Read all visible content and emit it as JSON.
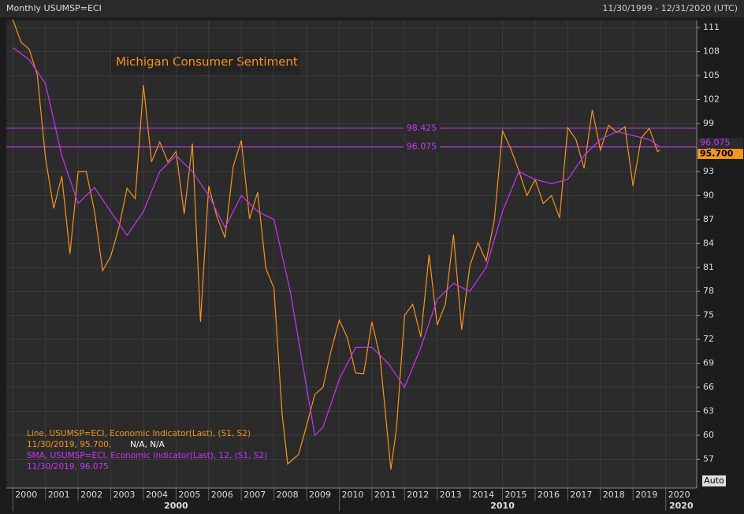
{
  "header": {
    "title": "Monthly USUMSP=ECI",
    "range": "11/30/1999 - 12/31/2020 (UTC)",
    "button": "Auto"
  },
  "chart_data": {
    "type": "line",
    "title": "Michigan Consumer Sentiment",
    "xlim": [
      1999.8,
      2020.95
    ],
    "ylim": [
      53.4,
      111.9
    ],
    "xticks": [
      2000,
      2001,
      2002,
      2003,
      2004,
      2005,
      2006,
      2007,
      2008,
      2009,
      2010,
      2011,
      2012,
      2013,
      2014,
      2015,
      2016,
      2017,
      2018,
      2019,
      2020
    ],
    "decade_labels": [
      2000,
      2010,
      2020
    ],
    "yticks": [
      57,
      60,
      63,
      66,
      69,
      72,
      75,
      78,
      81,
      84,
      87,
      90,
      93,
      96,
      99,
      102,
      105,
      108,
      111
    ],
    "grid": true,
    "reference_lines": [
      98.425,
      96.075
    ],
    "legend": [
      "Line, USUMSP=ECI, Economic Indicator(Last), (S1, S2)",
      "11/30/2019, 95.700,",
      "N/A, N/A",
      "SMA, USUMSP=ECI, Economic Indicator(Last),  12, (S1, S2)",
      "11/30/2019, 96.075"
    ],
    "series": [
      {
        "name": "USUMSP=ECI",
        "color": "#f7941d",
        "last_label": {
          "value": 95.7,
          "label": "95.700"
        },
        "x": [
          2000.0,
          2000.25,
          2000.5,
          2000.75,
          2001.0,
          2001.25,
          2001.5,
          2001.75,
          2002.0,
          2002.25,
          2002.5,
          2002.75,
          2003.0,
          2003.25,
          2003.5,
          2003.75,
          2004.0,
          2004.25,
          2004.5,
          2004.75,
          2005.0,
          2005.25,
          2005.5,
          2005.75,
          2006.0,
          2006.25,
          2006.5,
          2006.75,
          2007.0,
          2007.25,
          2007.5,
          2007.75,
          2008.0,
          2008.25,
          2008.42,
          2008.75,
          2009.0,
          2009.25,
          2009.5,
          2009.75,
          2010.0,
          2010.25,
          2010.5,
          2010.75,
          2011.0,
          2011.25,
          2011.58,
          2011.75,
          2012.0,
          2012.25,
          2012.5,
          2012.75,
          2013.0,
          2013.25,
          2013.5,
          2013.75,
          2014.0,
          2014.25,
          2014.5,
          2014.75,
          2015.0,
          2015.25,
          2015.5,
          2015.75,
          2016.0,
          2016.25,
          2016.5,
          2016.75,
          2017.0,
          2017.25,
          2017.5,
          2017.75,
          2018.0,
          2018.25,
          2018.5,
          2018.75,
          2019.0,
          2019.25,
          2019.5,
          2019.75,
          2019.83
        ],
        "values": [
          112,
          109.2,
          108.3,
          105.1,
          94.7,
          88.4,
          92.4,
          82.7,
          93,
          93,
          88.1,
          80.6,
          82.4,
          86,
          90.9,
          89.6,
          103.8,
          94.2,
          96.7,
          94.2,
          95.5,
          87.7,
          96.5,
          74.2,
          91.2,
          87.4,
          84.7,
          93.6,
          96.9,
          87.1,
          90.4,
          80.9,
          78.4,
          62.6,
          56.4,
          57.6,
          61.2,
          65.1,
          66,
          70.6,
          74.4,
          72.2,
          67.8,
          67.7,
          74.2,
          69.8,
          55.7,
          60.8,
          75,
          76.4,
          72.3,
          82.6,
          73.8,
          76.4,
          85.1,
          73.2,
          81.2,
          84.1,
          81.8,
          86.9,
          98.1,
          95.9,
          93.1,
          90,
          92,
          89,
          90,
          87.2,
          98.5,
          97,
          93.4,
          100.7,
          95.7,
          98.8,
          97.9,
          98.6,
          91.2,
          97.2,
          98.4,
          95.5,
          95.7
        ]
      },
      {
        "name": "SMA",
        "color": "#cc33ff",
        "last_label": 96.075,
        "x": [
          2000.0,
          2000.5,
          2001.0,
          2001.5,
          2002.0,
          2002.5,
          2003.0,
          2003.5,
          2004.0,
          2004.5,
          2005.0,
          2005.5,
          2006.0,
          2006.5,
          2007.0,
          2007.5,
          2008.0,
          2008.5,
          2009.0,
          2009.25,
          2009.5,
          2010.0,
          2010.5,
          2011.0,
          2011.5,
          2012.0,
          2012.5,
          2013.0,
          2013.5,
          2014.0,
          2014.5,
          2015.0,
          2015.5,
          2016.0,
          2016.5,
          2017.0,
          2017.5,
          2018.0,
          2018.5,
          2019.0,
          2019.5,
          2019.83
        ],
        "values": [
          108.5,
          107,
          104,
          95,
          89,
          91,
          88,
          85,
          88,
          93,
          95,
          93,
          90,
          86,
          90,
          88,
          87,
          78,
          66,
          60,
          61,
          67,
          71,
          71,
          69,
          66,
          71,
          77,
          79,
          78,
          81,
          88,
          93,
          92,
          91.5,
          92,
          95,
          97,
          98,
          97.5,
          97,
          96.075
        ]
      }
    ]
  }
}
